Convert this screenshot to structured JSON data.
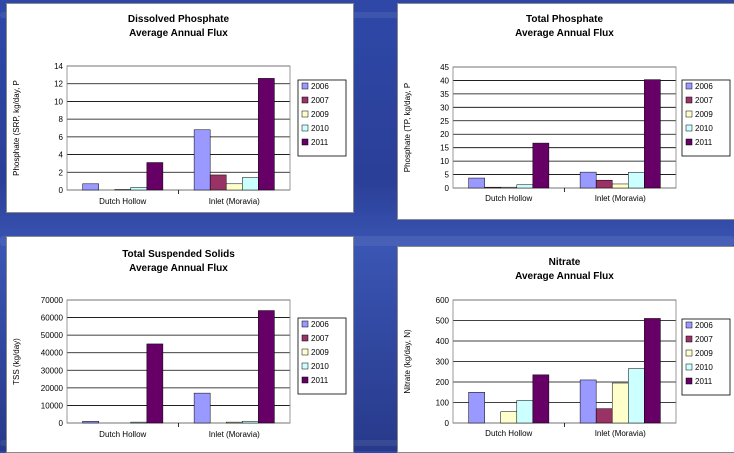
{
  "colors": {
    "2006": "#9999ff",
    "2007": "#993366",
    "2009": "#ffffcc",
    "2010": "#ccffff",
    "2011": "#660066"
  },
  "chart_data": [
    {
      "type": "bar",
      "title": [
        "Dissolved Phosphate",
        "Average Annual Flux"
      ],
      "ylabel": "Phosphate (SRP, kg/day, P",
      "categories": [
        "Dutch Hollow",
        "Inlet (Moravia)"
      ],
      "ylim": [
        0,
        14
      ],
      "yticks": [
        0,
        2,
        4,
        6,
        8,
        10,
        12,
        14
      ],
      "grid": true,
      "legend": "right",
      "series": [
        {
          "name": "2006",
          "values": [
            0.7,
            6.8
          ]
        },
        {
          "name": "2007",
          "values": [
            0.0,
            1.7
          ]
        },
        {
          "name": "2009",
          "values": [
            0.05,
            0.7
          ]
        },
        {
          "name": "2010",
          "values": [
            0.3,
            1.4
          ]
        },
        {
          "name": "2011",
          "values": [
            3.1,
            12.6
          ]
        }
      ]
    },
    {
      "type": "bar",
      "title": [
        "Total Phosphate",
        "Average Annual Flux"
      ],
      "ylabel": "Phosphate (TP, kg/day, P",
      "categories": [
        "Dutch Hollow",
        "Inlet (Moravia)"
      ],
      "ylim": [
        0,
        45
      ],
      "yticks": [
        0,
        5,
        10,
        15,
        20,
        25,
        30,
        35,
        40,
        45
      ],
      "grid": true,
      "legend": "right",
      "series": [
        {
          "name": "2006",
          "values": [
            3.7,
            5.9
          ]
        },
        {
          "name": "2007",
          "values": [
            0.3,
            2.9
          ]
        },
        {
          "name": "2009",
          "values": [
            0.3,
            1.5
          ]
        },
        {
          "name": "2010",
          "values": [
            1.2,
            5.8
          ]
        },
        {
          "name": "2011",
          "values": [
            16.7,
            40.3
          ]
        }
      ]
    },
    {
      "type": "bar",
      "title": [
        "Total Suspended Solids",
        "Average Annual Flux"
      ],
      "ylabel": "TSS (kg/day)",
      "categories": [
        "Dutch Hollow",
        "Inlet (Moravia)"
      ],
      "ylim": [
        0,
        70000
      ],
      "yticks": [
        0,
        10000,
        20000,
        30000,
        40000,
        50000,
        60000,
        70000
      ],
      "grid": true,
      "legend": "right",
      "series": [
        {
          "name": "2006",
          "values": [
            1000,
            17000
          ]
        },
        {
          "name": "2007",
          "values": [
            0,
            0
          ]
        },
        {
          "name": "2009",
          "values": [
            0,
            500
          ]
        },
        {
          "name": "2010",
          "values": [
            500,
            1000
          ]
        },
        {
          "name": "2011",
          "values": [
            45000,
            64000
          ]
        }
      ]
    },
    {
      "type": "bar",
      "title": [
        "Nitrate",
        "Average Annual Flux"
      ],
      "ylabel": "Nitrate (kg/day, N)",
      "categories": [
        "Dutch Hollow",
        "Inlet (Moravia)"
      ],
      "ylim": [
        0,
        600
      ],
      "yticks": [
        0,
        100,
        200,
        300,
        400,
        500,
        600
      ],
      "grid": true,
      "legend": "right",
      "series": [
        {
          "name": "2006",
          "values": [
            150,
            210
          ]
        },
        {
          "name": "2007",
          "values": [
            0,
            70
          ]
        },
        {
          "name": "2009",
          "values": [
            55,
            195
          ]
        },
        {
          "name": "2010",
          "values": [
            110,
            265
          ]
        },
        {
          "name": "2011",
          "values": [
            235,
            510
          ]
        }
      ]
    }
  ]
}
